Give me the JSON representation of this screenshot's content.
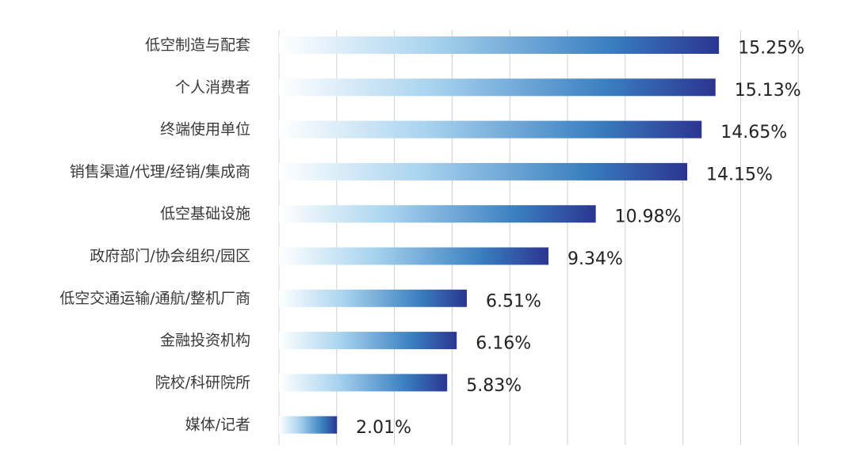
{
  "chart_data": {
    "type": "bar",
    "orientation": "horizontal",
    "title": "",
    "xlabel": "",
    "ylabel": "",
    "xlim": [
      0,
      18
    ],
    "grid": true,
    "categories": [
      "低空制造与配套",
      "个人消费者",
      "终端使用单位",
      "销售渠道/代理/经销/集成商",
      "低空基础设施",
      "政府部门/协会组织/园区",
      "低空交通运输/通航/整机厂商",
      "金融投资机构",
      "院校/科研院所",
      "媒体/记者"
    ],
    "values": [
      15.25,
      15.13,
      14.65,
      14.15,
      10.98,
      9.34,
      6.51,
      6.16,
      5.83,
      2.01
    ],
    "data_labels": [
      "15.25%",
      "15.13%",
      "14.65%",
      "14.15%",
      "10.98%",
      "9.34%",
      "6.51%",
      "6.16%",
      "5.83%",
      "2.01%"
    ],
    "colors": {
      "gradient_start": "#ffffff",
      "gradient_light": "#a8d3ef",
      "gradient_mid": "#3a7fc0",
      "gradient_end": "#2b3590",
      "grid": "#cfcfcf"
    }
  }
}
